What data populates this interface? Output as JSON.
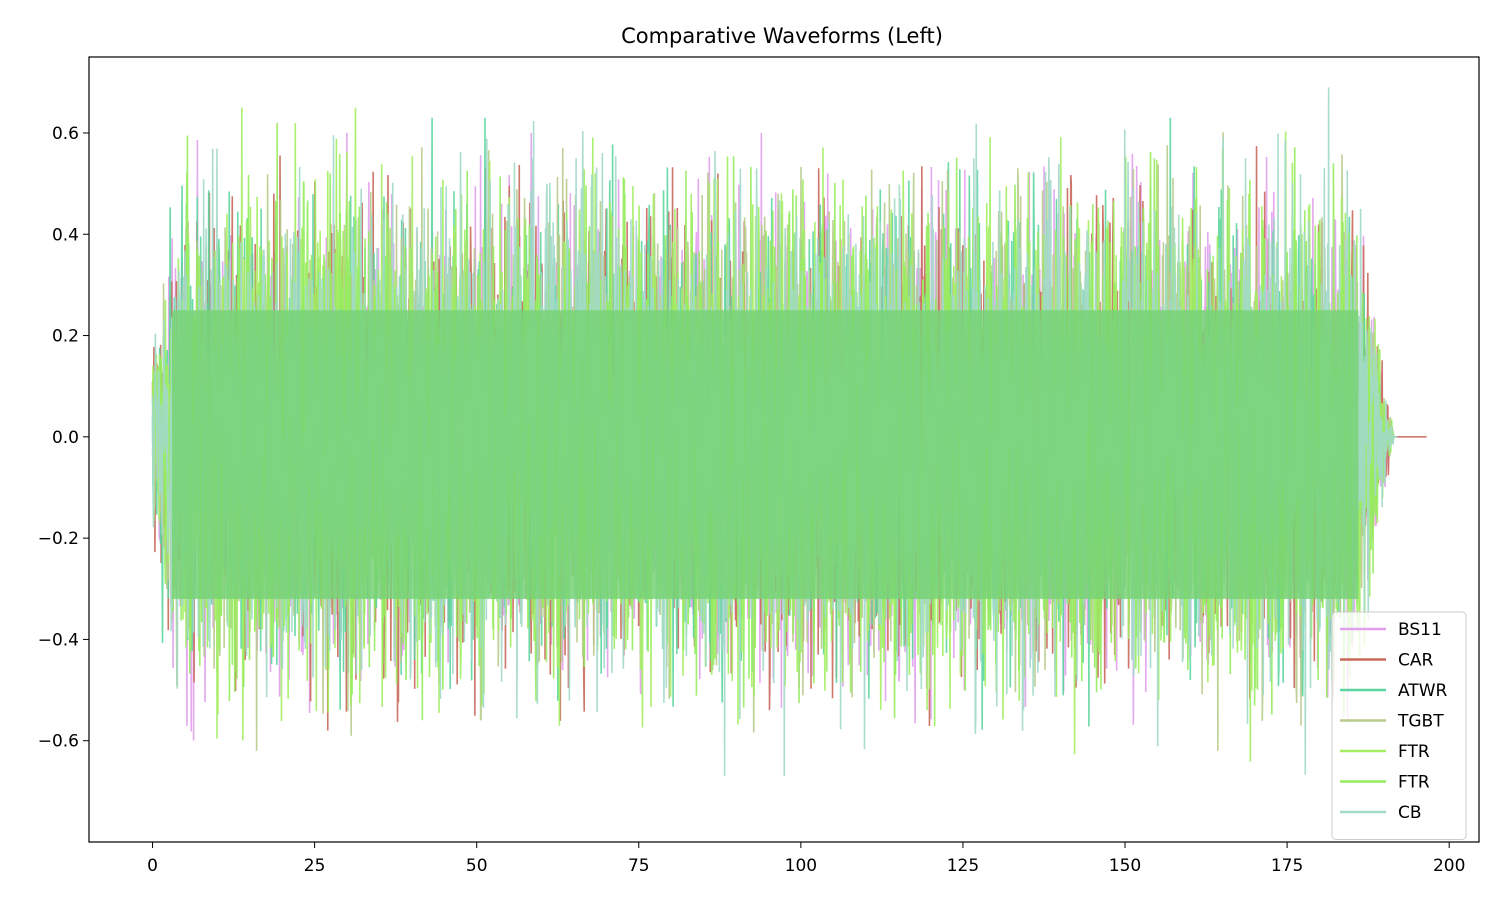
{
  "chart_data": {
    "type": "line",
    "title": "Comparative Waveforms (Left)",
    "xlabel": "",
    "ylabel": "",
    "xlim": [
      -9.8,
      204.6
    ],
    "ylim": [
      -0.8,
      0.75
    ],
    "xticks": [
      0,
      25,
      50,
      75,
      100,
      125,
      150,
      175,
      200
    ],
    "xtick_labels": [
      "0",
      "25",
      "50",
      "75",
      "100",
      "125",
      "150",
      "175",
      "200"
    ],
    "yticks": [
      -0.6,
      -0.4,
      -0.2,
      0.0,
      0.2,
      0.4,
      0.6
    ],
    "ytick_labels": [
      "−0.6",
      "−0.4",
      "−0.2",
      "0.0",
      "0.2",
      "0.4",
      "0.6"
    ],
    "grid": false,
    "legend_position": "lower-right",
    "series": [
      {
        "name": "BS11",
        "color": "#e1a0ec",
        "alpha": 0.9,
        "x_end": 191.5,
        "min": -0.69,
        "max": 0.6
      },
      {
        "name": "CAR",
        "color": "#c8695b",
        "alpha": 0.9,
        "x_end": 196.5,
        "min": -0.6,
        "max": 0.68
      },
      {
        "name": "ATWR",
        "color": "#5cd59e",
        "alpha": 0.9,
        "x_end": 191.0,
        "min": -0.6,
        "max": 0.63
      },
      {
        "name": "TGBT",
        "color": "#b8cb8c",
        "alpha": 0.9,
        "x_end": 191.5,
        "min": -0.62,
        "max": 0.66
      },
      {
        "name": "FTR",
        "color": "#a3ee63",
        "alpha": 0.9,
        "x_end": 191.5,
        "min": -0.72,
        "max": 0.65
      },
      {
        "name": "FTR",
        "color": "#96ec5f",
        "alpha": 0.9,
        "x_end": 191.5,
        "min": -0.7,
        "max": 0.62
      },
      {
        "name": "CB",
        "color": "#a2d9ca",
        "alpha": 0.9,
        "x_end": 192.0,
        "min": -0.67,
        "max": 0.69
      }
    ]
  }
}
